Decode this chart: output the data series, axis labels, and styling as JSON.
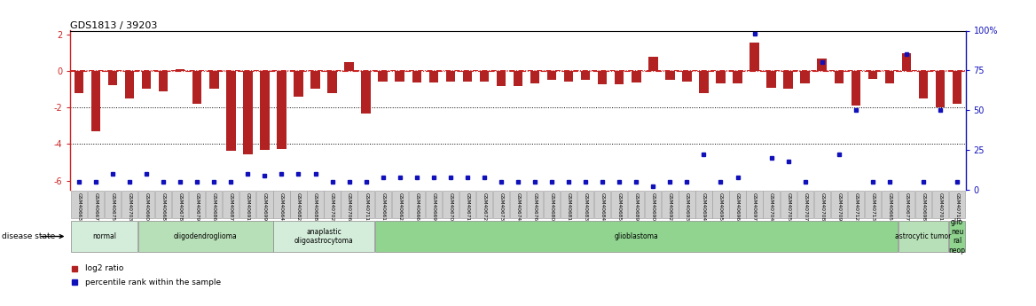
{
  "title": "GDS1813 / 39203",
  "samples": [
    "GSM40663",
    "GSM40667",
    "GSM40675",
    "GSM40703",
    "GSM40660",
    "GSM40668",
    "GSM40678",
    "GSM40679",
    "GSM40686",
    "GSM40687",
    "GSM40691",
    "GSM40699",
    "GSM40664",
    "GSM40682",
    "GSM40688",
    "GSM40702",
    "GSM40706",
    "GSM40711",
    "GSM40661",
    "GSM40662",
    "GSM40666",
    "GSM40669",
    "GSM40670",
    "GSM40671",
    "GSM40672",
    "GSM40673",
    "GSM40674",
    "GSM40676",
    "GSM40680",
    "GSM40681",
    "GSM40683",
    "GSM40684",
    "GSM40685",
    "GSM40689",
    "GSM40690",
    "GSM40692",
    "GSM40693",
    "GSM40694",
    "GSM40695",
    "GSM40696",
    "GSM40697",
    "GSM40704",
    "GSM40705",
    "GSM40707",
    "GSM40708",
    "GSM40709",
    "GSM40712",
    "GSM40713",
    "GSM40665",
    "GSM40677",
    "GSM40698",
    "GSM40701",
    "GSM40710"
  ],
  "log2_ratio": [
    -1.2,
    -3.3,
    -0.8,
    -1.5,
    -1.0,
    -1.1,
    0.1,
    -1.8,
    -1.0,
    -4.35,
    -4.55,
    -4.3,
    -4.25,
    -1.4,
    -1.0,
    -1.2,
    0.5,
    -2.35,
    -0.6,
    -0.6,
    -0.65,
    -0.65,
    -0.6,
    -0.6,
    -0.6,
    -0.85,
    -0.85,
    -0.7,
    -0.5,
    -0.6,
    -0.5,
    -0.75,
    -0.75,
    -0.65,
    0.75,
    -0.5,
    -0.6,
    -1.2,
    -0.7,
    -0.7,
    1.55,
    -0.95,
    -1.0,
    -0.7,
    0.65,
    -0.7,
    -1.9,
    -0.45,
    -0.7,
    0.95,
    -1.5,
    -2.0,
    -1.8
  ],
  "percentile": [
    5,
    5,
    10,
    5,
    10,
    5,
    5,
    5,
    5,
    5,
    10,
    9,
    10,
    10,
    10,
    5,
    5,
    5,
    8,
    8,
    8,
    8,
    8,
    8,
    8,
    5,
    5,
    5,
    5,
    5,
    5,
    5,
    5,
    5,
    2,
    5,
    5,
    22,
    5,
    8,
    98,
    20,
    18,
    5,
    80,
    22,
    50,
    5,
    5,
    85,
    5,
    50,
    5
  ],
  "disease_groups": [
    {
      "label": "normal",
      "start": 0,
      "end": 4,
      "color": "#d4edda"
    },
    {
      "label": "oligodendroglioma",
      "start": 4,
      "end": 12,
      "color": "#b8e0b8"
    },
    {
      "label": "anaplastic\noligoastrocytoma",
      "start": 12,
      "end": 18,
      "color": "#d4edda"
    },
    {
      "label": "glioblastoma",
      "start": 18,
      "end": 49,
      "color": "#90d490"
    },
    {
      "label": "astrocytic tumor",
      "start": 49,
      "end": 52,
      "color": "#b8e0b8"
    },
    {
      "label": "glio\nneu\nral\nneop",
      "start": 52,
      "end": 53,
      "color": "#90d490"
    }
  ],
  "bar_color": "#b22222",
  "dot_color": "#1111bb",
  "ylim_left": [
    -6.5,
    2.2
  ],
  "left_ticks": [
    2,
    0,
    -2,
    -4,
    -6
  ],
  "right_ticks": [
    0,
    25,
    50,
    75,
    100
  ],
  "hline_0_color": "#cc2222",
  "hline_0_style": "-.",
  "hline_neg2_color": "black",
  "hline_neg4_color": "black",
  "pct75_line_color": "#cc2222",
  "pct75_line_style": "-."
}
